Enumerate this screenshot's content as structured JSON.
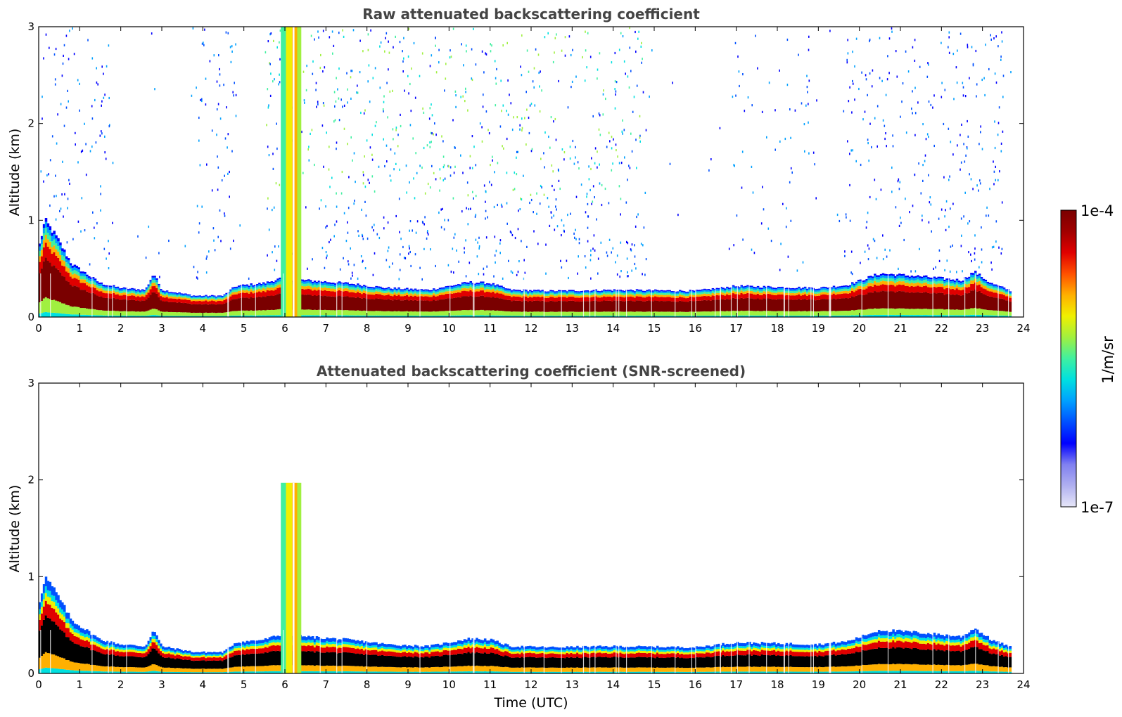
{
  "colorbar": {
    "max_label": "1e-4",
    "min_label": "1e-7",
    "unit_label": "1/m/sr",
    "stops": [
      "#e6e6f8",
      "#b0b0f0",
      "#8080f0",
      "#0000ff",
      "#0050ff",
      "#00a0ff",
      "#00e0e0",
      "#40f0a0",
      "#a0f040",
      "#f0f000",
      "#ffb000",
      "#ff5000",
      "#e00000",
      "#a00000",
      "#7a0000"
    ]
  },
  "chart_data": [
    {
      "type": "heatmap",
      "title": "Raw attenuated backscattering coefficient",
      "xlabel": "",
      "ylabel": "Altitude (km)",
      "xlim": [
        0,
        24
      ],
      "ylim": [
        0,
        3
      ],
      "x_ticks": [
        "0",
        "1",
        "2",
        "3",
        "4",
        "5",
        "6",
        "7",
        "8",
        "9",
        "10",
        "11",
        "12",
        "13",
        "14",
        "15",
        "16",
        "17",
        "18",
        "19",
        "20",
        "21",
        "22",
        "23",
        "24"
      ],
      "y_ticks": [
        "0",
        "1",
        "2",
        "3"
      ],
      "boundary_layer_top_km": [
        [
          0,
          0.7
        ],
        [
          0.15,
          1.0
        ],
        [
          0.4,
          0.85
        ],
        [
          0.8,
          0.55
        ],
        [
          1.5,
          0.35
        ],
        [
          2.0,
          0.3
        ],
        [
          2.6,
          0.28
        ],
        [
          2.8,
          0.45
        ],
        [
          3.0,
          0.28
        ],
        [
          3.8,
          0.22
        ],
        [
          4.5,
          0.22
        ],
        [
          4.8,
          0.32
        ],
        [
          5.5,
          0.35
        ],
        [
          5.9,
          0.4
        ],
        [
          6.5,
          0.38
        ],
        [
          7.5,
          0.35
        ],
        [
          8.5,
          0.3
        ],
        [
          9.5,
          0.28
        ],
        [
          10.0,
          0.32
        ],
        [
          10.5,
          0.36
        ],
        [
          11.0,
          0.35
        ],
        [
          11.5,
          0.28
        ],
        [
          12.5,
          0.27
        ],
        [
          14.0,
          0.28
        ],
        [
          16.0,
          0.27
        ],
        [
          17.0,
          0.32
        ],
        [
          19.0,
          0.3
        ],
        [
          19.7,
          0.33
        ],
        [
          20.5,
          0.45
        ],
        [
          21.5,
          0.42
        ],
        [
          22.5,
          0.38
        ],
        [
          22.8,
          0.47
        ],
        [
          23.2,
          0.35
        ],
        [
          23.7,
          0.27
        ]
      ],
      "aerosol_plume_column_utc": [
        5.9,
        6.4
      ],
      "aerosol_plume_top_km": 3.0,
      "noise_top_km": 3.0
    },
    {
      "type": "heatmap",
      "title": "Attenuated backscattering coefficient (SNR-screened)",
      "xlabel": "Time (UTC)",
      "ylabel": "Altitude (km)",
      "xlim": [
        0,
        24
      ],
      "ylim": [
        0,
        3
      ],
      "x_ticks": [
        "0",
        "1",
        "2",
        "3",
        "4",
        "5",
        "6",
        "7",
        "8",
        "9",
        "10",
        "11",
        "12",
        "13",
        "14",
        "15",
        "16",
        "17",
        "18",
        "19",
        "20",
        "21",
        "22",
        "23",
        "24"
      ],
      "y_ticks": [
        "0",
        "1",
        "2",
        "3"
      ],
      "aerosol_plume_column_utc": [
        5.9,
        6.4
      ],
      "aerosol_plume_top_km": 1.97,
      "saturated_core_color": "#000000"
    }
  ]
}
